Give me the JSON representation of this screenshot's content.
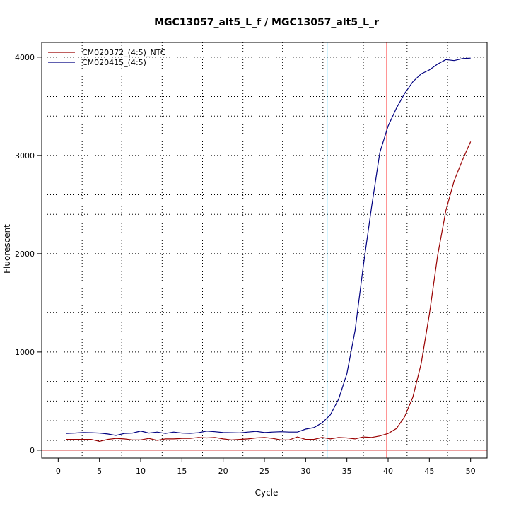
{
  "chart_data": {
    "type": "line",
    "title": "MGC13057_alt5_L_f / MGC13057_alt5_L_r",
    "xlabel": "Cycle",
    "ylabel": "Fluorescent",
    "xlim": [
      -2,
      52
    ],
    "ylim": [
      -80,
      4150
    ],
    "x_ticks": [
      0,
      5,
      10,
      15,
      20,
      25,
      30,
      35,
      40,
      45,
      50
    ],
    "y_ticks": [
      0,
      1000,
      2000,
      3000,
      4000
    ],
    "minor_vgrid": [
      2.9,
      7.7,
      12.6,
      17.5,
      22.4,
      27.2,
      32.1,
      37.0,
      42.3,
      47.2
    ],
    "minor_hgrid": [
      100,
      300,
      500,
      700,
      1000,
      1400,
      1600,
      2000,
      2400,
      2600,
      3000,
      3400,
      3600,
      4000
    ],
    "threshold": 0,
    "threshold_color": "#cc0000",
    "ct_lines": [
      {
        "x": 32.6,
        "color": "#00c0ff"
      },
      {
        "x": 39.8,
        "color": "#ff8080"
      }
    ],
    "legend_position": "top-left",
    "series": [
      {
        "name": "CM020372_(4:5)_NTC",
        "color": "#990000",
        "x": [
          1,
          2,
          3,
          4,
          5,
          6,
          7,
          8,
          9,
          10,
          11,
          12,
          13,
          14,
          15,
          16,
          17,
          18,
          19,
          20,
          21,
          22,
          23,
          24,
          25,
          26,
          27,
          28,
          29,
          30,
          31,
          32,
          33,
          34,
          35,
          36,
          37,
          38,
          39,
          40,
          41,
          42,
          43,
          44,
          45,
          46,
          47,
          48,
          49,
          50
        ],
        "values": [
          110,
          110,
          110,
          110,
          90,
          110,
          120,
          115,
          105,
          105,
          120,
          100,
          115,
          115,
          120,
          120,
          130,
          125,
          130,
          115,
          105,
          110,
          115,
          125,
          130,
          120,
          105,
          105,
          135,
          110,
          110,
          130,
          115,
          130,
          125,
          115,
          135,
          130,
          145,
          170,
          220,
          340,
          540,
          880,
          1380,
          1980,
          2440,
          2740,
          2950,
          3140
        ]
      },
      {
        "name": "CM020415_(4:5)",
        "color": "#000080",
        "x": [
          1,
          2,
          3,
          4,
          5,
          6,
          7,
          8,
          9,
          10,
          11,
          12,
          13,
          14,
          15,
          16,
          17,
          18,
          19,
          20,
          21,
          22,
          23,
          24,
          25,
          26,
          27,
          28,
          29,
          30,
          31,
          32,
          33,
          34,
          35,
          36,
          37,
          38,
          39,
          40,
          41,
          42,
          43,
          44,
          45,
          46,
          47,
          48,
          49,
          50
        ],
        "values": [
          170,
          175,
          180,
          178,
          175,
          165,
          150,
          170,
          175,
          195,
          175,
          185,
          170,
          185,
          175,
          172,
          178,
          195,
          188,
          180,
          178,
          176,
          185,
          192,
          180,
          185,
          188,
          185,
          185,
          215,
          230,
          280,
          360,
          520,
          780,
          1220,
          1880,
          2480,
          3030,
          3300,
          3480,
          3630,
          3750,
          3830,
          3870,
          3930,
          3975,
          3965,
          3985,
          3990
        ]
      }
    ]
  }
}
